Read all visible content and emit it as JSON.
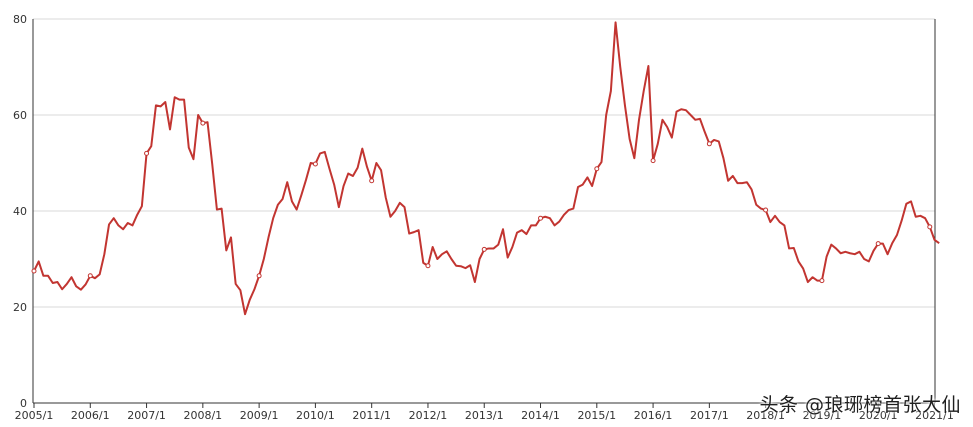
{
  "chart_data": {
    "type": "line",
    "title": "",
    "xlabel": "",
    "ylabel": "",
    "ylim": [
      0,
      80
    ],
    "y_ticks": [
      "0",
      "20",
      "40",
      "60",
      "80"
    ],
    "x_ticks": [
      "2005/1",
      "2006/1",
      "2007/1",
      "2008/1",
      "2009/1",
      "2010/1",
      "2011/1",
      "2012/1",
      "2013/1",
      "2014/1",
      "2015/1",
      "2016/1",
      "2017/1",
      "2018/1",
      "2019/1",
      "2020/1",
      "2021/1"
    ],
    "grid": "horizontal",
    "line_color": "#c23531",
    "series": [
      {
        "values": [
          27.5,
          29.5,
          26.5,
          26.5,
          25,
          25.2,
          23.7,
          24.8,
          26.2,
          24.3,
          23.6,
          24.7,
          26.5,
          26,
          26.8,
          31,
          37.2,
          38.5,
          37,
          36.2,
          37.5,
          37,
          39.2,
          41,
          52,
          53.5,
          62,
          61.8,
          62.7,
          57,
          63.7,
          63.2,
          63.2,
          53.2,
          50.8,
          60,
          58.3,
          58.5,
          49.8,
          40.3,
          40.5,
          31.8,
          34.5,
          24.8,
          23.5,
          18.5,
          21.5,
          23.7,
          26.5,
          30,
          34.5,
          38.5,
          41.3,
          42.5,
          46,
          42,
          40.3,
          43.3,
          46.5,
          50,
          49.8,
          52,
          52.3,
          48.8,
          45.5,
          40.8,
          45.2,
          47.8,
          47.3,
          49,
          53,
          49.2,
          46.3,
          50,
          48.5,
          42.8,
          38.8,
          40,
          41.7,
          40.8,
          35.3,
          35.6,
          36,
          29.2,
          28.6,
          32.5,
          30,
          31,
          31.6,
          30,
          28.6,
          28.5,
          28.1,
          28.7,
          25.2,
          30,
          32,
          32.2,
          32.2,
          33,
          36.2,
          30.3,
          32.5,
          35.5,
          36,
          35.2,
          37,
          37,
          38.5,
          38.8,
          38.5,
          37,
          37.8,
          39.2,
          40.2,
          40.5,
          45,
          45.5,
          47,
          45.2,
          48.8,
          50.2,
          60,
          65,
          79.3,
          70,
          62,
          55,
          51,
          59,
          65,
          70.2,
          50.5,
          54,
          59,
          57.5,
          55.3,
          60.7,
          61.2,
          61,
          60,
          59,
          59.2,
          56.5,
          54,
          54.8,
          54.5,
          51,
          46.3,
          47.3,
          45.8,
          45.8,
          46,
          44.5,
          41.3,
          40.5,
          40.2,
          37.7,
          39,
          37.7,
          37,
          32.2,
          32.3,
          29.5,
          28,
          25.2,
          26.2,
          25.5,
          25.5,
          30.5,
          33,
          32.2,
          31.2,
          31.5,
          31.2,
          31,
          31.5,
          30,
          29.5,
          31.7,
          33.2,
          33.2,
          31,
          33.3,
          35,
          38,
          41.5,
          42,
          38.8,
          39,
          38.5,
          36.7,
          34,
          33.3
        ]
      }
    ],
    "marker_indices": [
      0,
      12,
      24,
      36,
      48,
      60,
      72,
      84,
      96,
      108,
      120,
      132,
      144,
      156,
      168,
      180,
      191
    ]
  },
  "watermark": "头条 @琅琊榜首张大仙"
}
